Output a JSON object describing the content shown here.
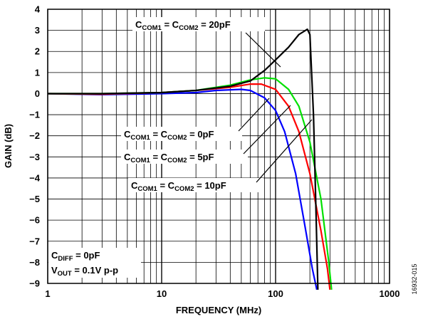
{
  "chart_data": {
    "type": "line",
    "title": "",
    "xlabel": "FREQUENCY (MHz)",
    "ylabel": "GAIN (dB)",
    "x_scale": "log",
    "xlim": [
      1,
      1000
    ],
    "ylim": [
      -9,
      4
    ],
    "x_ticks": [
      1,
      10,
      100,
      1000
    ],
    "x_tick_labels": [
      "1",
      "10",
      "100",
      "1000"
    ],
    "y_ticks": [
      4,
      3,
      2,
      1,
      0,
      -1,
      -2,
      -3,
      -4,
      -5,
      -6,
      -7,
      -8,
      -9
    ],
    "y_tick_labels": [
      "4",
      "3",
      "2",
      "1",
      "0",
      "−1",
      "−2",
      "−3",
      "−4",
      "−5",
      "−6",
      "−7",
      "−8",
      "−9"
    ],
    "grid": true,
    "series": [
      {
        "color": "#0000ff",
        "points": [
          [
            1,
            0
          ],
          [
            3,
            -0.05
          ],
          [
            10,
            0.0
          ],
          [
            20,
            0.05
          ],
          [
            30,
            0.15
          ],
          [
            50,
            0.2
          ],
          [
            60,
            0.15
          ],
          [
            80,
            -0.2
          ],
          [
            100,
            -0.8
          ],
          [
            120,
            -1.8
          ],
          [
            150,
            -3.8
          ],
          [
            180,
            -6.2
          ],
          [
            210,
            -8.3
          ],
          [
            230,
            -9.3
          ]
        ]
      },
      {
        "color": "#ff0000",
        "points": [
          [
            1,
            0
          ],
          [
            3,
            -0.03
          ],
          [
            10,
            0.05
          ],
          [
            20,
            0.15
          ],
          [
            40,
            0.3
          ],
          [
            60,
            0.45
          ],
          [
            75,
            0.45
          ],
          [
            100,
            0.2
          ],
          [
            130,
            -0.6
          ],
          [
            160,
            -1.8
          ],
          [
            200,
            -3.8
          ],
          [
            250,
            -6.5
          ],
          [
            285,
            -8.3
          ],
          [
            300,
            -9.3
          ]
        ]
      },
      {
        "color": "#00e000",
        "points": [
          [
            1,
            0
          ],
          [
            3,
            0.0
          ],
          [
            10,
            0.05
          ],
          [
            20,
            0.15
          ],
          [
            40,
            0.4
          ],
          [
            60,
            0.65
          ],
          [
            80,
            0.75
          ],
          [
            100,
            0.7
          ],
          [
            130,
            0.2
          ],
          [
            160,
            -0.6
          ],
          [
            200,
            -2.3
          ],
          [
            250,
            -5.0
          ],
          [
            290,
            -7.8
          ],
          [
            310,
            -9.3
          ]
        ]
      },
      {
        "color": "#000000",
        "points": [
          [
            1,
            0
          ],
          [
            3,
            0.0
          ],
          [
            10,
            0.05
          ],
          [
            20,
            0.15
          ],
          [
            40,
            0.35
          ],
          [
            60,
            0.6
          ],
          [
            80,
            1.1
          ],
          [
            100,
            1.6
          ],
          [
            130,
            2.2
          ],
          [
            160,
            2.8
          ],
          [
            190,
            3.05
          ],
          [
            200,
            2.8
          ],
          [
            215,
            -1.0
          ],
          [
            225,
            -5.0
          ],
          [
            235,
            -9.3
          ]
        ]
      }
    ],
    "annotations": [
      {
        "main": "C",
        "sub": "COM1",
        "mid": " = C",
        "sub2": "COM2",
        "tail": " = 20pF"
      },
      {
        "main": "C",
        "sub": "COM1",
        "mid": " = C",
        "sub2": "COM2",
        "tail": " = 0pF"
      },
      {
        "main": "C",
        "sub": "COM1",
        "mid": " = C",
        "sub2": "COM2",
        "tail": " = 5pF"
      },
      {
        "main": "C",
        "sub": "COM1",
        "mid": " = C",
        "sub2": "COM2",
        "tail": " = 10pF"
      }
    ],
    "conditions": [
      {
        "main": "C",
        "sub": "DIFF",
        "tail": " = 0pF"
      },
      {
        "main": "V",
        "sub": "OUT",
        "tail": " = 0.1V p-p"
      }
    ],
    "figure_id": "16932-015"
  }
}
